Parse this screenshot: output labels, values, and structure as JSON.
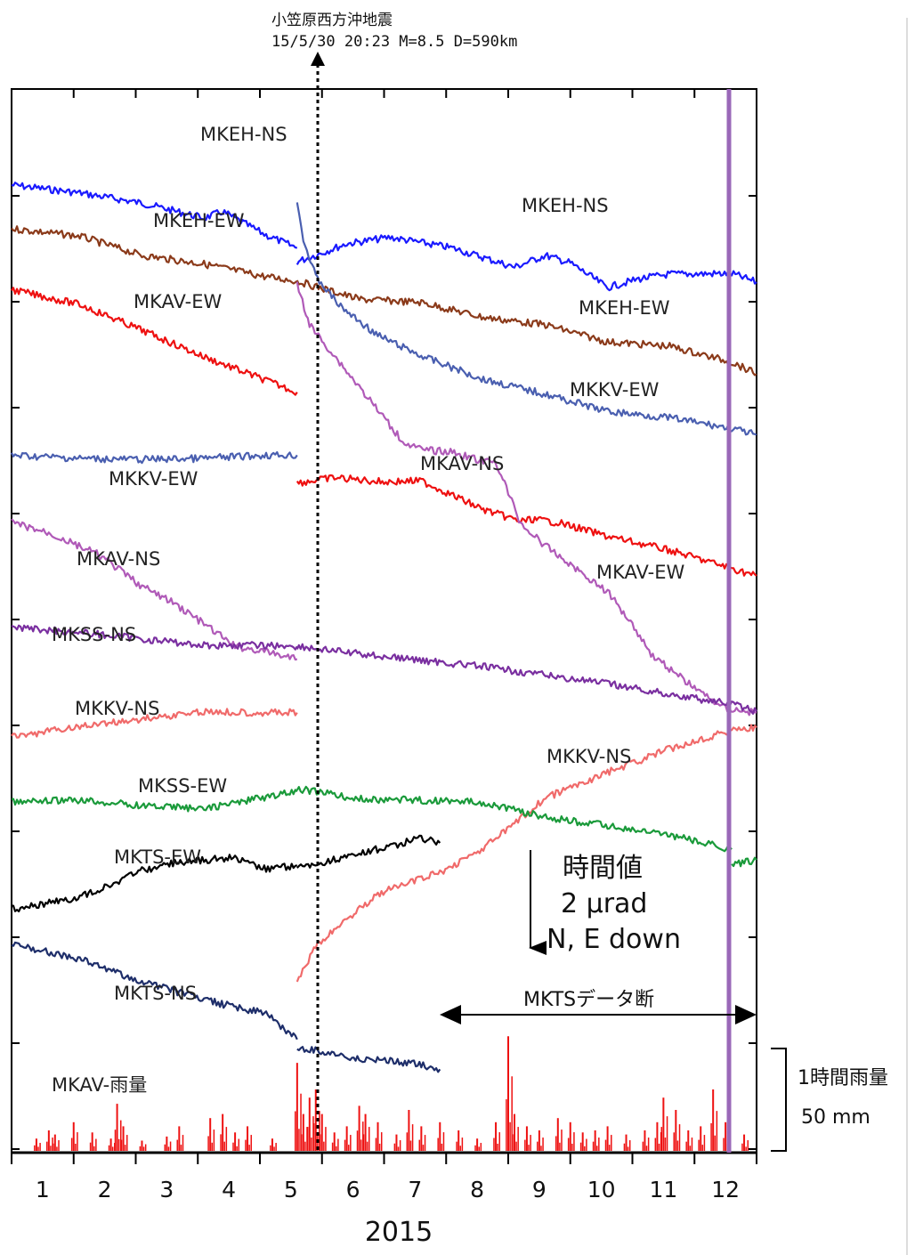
{
  "chart_data": {
    "type": "line",
    "title": "",
    "xlabel": "2015",
    "ylabel": "",
    "x_ticks": [
      "1",
      "2",
      "3",
      "4",
      "5",
      "6",
      "7",
      "8",
      "9",
      "10",
      "11",
      "12"
    ],
    "xlim": [
      0.4,
      12.4
    ],
    "grid": false,
    "event": {
      "name": "小笠原西方沖地震",
      "detail": "15/5/30 20:23 M=8.5 D=590km",
      "month": 5.0
    },
    "scale": {
      "title": "時間値",
      "value": "2 μrad",
      "direction": "N, E down"
    },
    "rain_scale": {
      "title": "1時間雨量",
      "value": "50 mm"
    },
    "gap_annotation": {
      "text": "MKTSデータ断",
      "from_month": 7.4,
      "to_month": 12.4
    },
    "series": [
      {
        "name": "MKEH-NS",
        "color": "#1a1aff",
        "segments": [
          {
            "x": [
              0.4,
              1.5,
              2.5,
              3.5,
              3.8,
              4.5,
              5.0
            ],
            "y": [
              1.72,
              1.57,
              1.38,
              1.1,
              1.22,
              0.78,
              0.54
            ]
          },
          {
            "x": [
              5.0,
              5.8,
              6.5,
              7.5,
              8.5,
              9.0,
              9.4,
              10.0,
              10.5,
              11.0,
              12.0,
              12.4
            ],
            "y": [
              0.28,
              0.62,
              0.74,
              0.54,
              0.18,
              0.4,
              0.26,
              -0.2,
              -0.04,
              0.05,
              0.06,
              -0.1
            ]
          }
        ]
      },
      {
        "name": "MKEH-EW",
        "color": "#8b3a1a",
        "segments": [
          {
            "x": [
              0.4,
              1.5,
              2.5,
              3.5,
              4.5,
              5.0
            ],
            "y": [
              0.9,
              0.76,
              0.4,
              0.24,
              0.0,
              -0.08
            ]
          },
          {
            "x": [
              5.0,
              6.0,
              7.0,
              8.0,
              9.0,
              10.0,
              11.0,
              12.0,
              12.4
            ],
            "y": [
              -0.08,
              -0.42,
              -0.48,
              -0.76,
              -0.9,
              -1.22,
              -1.3,
              -1.6,
              -1.82
            ]
          }
        ]
      },
      {
        "name": "MKAV-EW",
        "color": "#ee1111",
        "segments": [
          {
            "x": [
              0.4,
              1.5,
              2.5,
              3.5,
              4.5,
              5.0
            ],
            "y": [
              -0.24,
              -0.52,
              -1.0,
              -1.5,
              -1.94,
              -2.16
            ]
          },
          {
            "x": [
              5.0,
              5.6,
              6.4,
              7.0,
              8.0,
              8.6,
              8.8,
              9.2,
              10.0,
              11.0,
              12.0,
              12.4
            ],
            "y": [
              -3.86,
              -3.76,
              -3.84,
              -3.82,
              -4.36,
              -4.58,
              -4.54,
              -4.6,
              -4.86,
              -5.12,
              -5.46,
              -5.6
            ]
          }
        ]
      },
      {
        "name": "MKKV-EW",
        "color": "#4a5fb0",
        "segments": [
          {
            "x": [
              0.4,
              1.5,
              2.5,
              3.5,
              4.5,
              5.0
            ],
            "y": [
              -3.34,
              -3.4,
              -3.42,
              -3.4,
              -3.34,
              -3.34
            ]
          },
          {
            "x": [
              5.0,
              5.1,
              5.3,
              5.7,
              6.3,
              7.0,
              8.0,
              9.0,
              10.0,
              11.0,
              12.0,
              12.4
            ],
            "y": [
              1.4,
              0.7,
              0.0,
              -0.56,
              -1.1,
              -1.48,
              -1.92,
              -2.2,
              -2.52,
              -2.64,
              -2.84,
              -2.96
            ]
          }
        ]
      },
      {
        "name": "MKAV-NS",
        "color": "#b05ab8",
        "segments": [
          {
            "x": [
              0.4,
              1.0,
              1.8,
              2.5,
              3.0,
              3.5,
              4.0,
              4.5,
              5.0
            ],
            "y": [
              -4.6,
              -4.8,
              -5.2,
              -5.8,
              -6.1,
              -6.5,
              -6.92,
              -7.02,
              -7.16
            ]
          },
          {
            "x": [
              5.0,
              5.2,
              6.0,
              6.7,
              7.0,
              7.5,
              8.0,
              8.2,
              8.4,
              8.6,
              9.0,
              9.6,
              10.0,
              10.4,
              10.7,
              11.2,
              11.6,
              11.9,
              12.4
            ],
            "y": [
              -0.12,
              -0.9,
              -2.06,
              -3.08,
              -3.24,
              -3.28,
              -3.46,
              -3.46,
              -4.04,
              -4.62,
              -5.04,
              -5.56,
              -5.9,
              -6.5,
              -7.06,
              -7.52,
              -7.86,
              -8.08,
              -8.16
            ]
          }
        ]
      },
      {
        "name": "MKSS-NS",
        "color": "#7a2fa0",
        "segments": [
          {
            "x": [
              0.4,
              1.5,
              2.5,
              3.5,
              4.5,
              5.0
            ],
            "y": [
              -6.56,
              -6.66,
              -6.78,
              -6.9,
              -6.9,
              -6.92
            ]
          },
          {
            "x": [
              5.0,
              6.0,
              7.0,
              8.0,
              9.0,
              10.0,
              11.0,
              12.0,
              12.4
            ],
            "y": [
              -6.92,
              -7.06,
              -7.18,
              -7.3,
              -7.46,
              -7.62,
              -7.82,
              -8.0,
              -8.14
            ]
          }
        ]
      },
      {
        "name": "MKKV-NS",
        "color": "#f06a6a",
        "segments": [
          {
            "x": [
              0.4,
              1.5,
              2.5,
              3.5,
              4.5,
              5.0
            ],
            "y": [
              -8.62,
              -8.42,
              -8.28,
              -8.14,
              -8.16,
              -8.16
            ]
          },
          {
            "x": [
              5.0,
              5.3,
              5.8,
              6.3,
              6.8,
              7.3,
              8.0,
              8.5,
              9.0,
              10.0,
              11.0,
              12.0,
              12.4
            ],
            "y": [
              -13.22,
              -12.54,
              -12.02,
              -11.56,
              -11.34,
              -11.16,
              -10.7,
              -10.24,
              -9.76,
              -9.28,
              -8.84,
              -8.48,
              -8.44
            ]
          }
        ]
      },
      {
        "name": "MKSS-EW",
        "color": "#1a9a3a",
        "segments": [
          {
            "x": [
              0.4,
              1.5,
              2.5,
              3.5,
              4.5,
              5.0
            ],
            "y": [
              -9.84,
              -9.8,
              -9.9,
              -9.96,
              -9.74,
              -9.64
            ]
          },
          {
            "x": [
              5.0,
              6.0,
              7.0,
              8.0,
              9.0,
              10.0,
              11.0,
              12.0
            ],
            "y": [
              -9.58,
              -9.78,
              -9.8,
              -9.84,
              -10.12,
              -10.28,
              -10.46,
              -10.72
            ]
          },
          {
            "x": [
              12.0,
              12.4
            ],
            "y": [
              -11.02,
              -10.92
            ]
          }
        ]
      },
      {
        "name": "MKTS-EW",
        "color": "#000000",
        "segments": [
          {
            "x": [
              0.4,
              1.5,
              2.5,
              3.0,
              3.5,
              4.0,
              4.5,
              5.0
            ],
            "y": [
              -11.84,
              -11.62,
              -11.12,
              -10.98,
              -10.92,
              -10.88,
              -11.08,
              -11.02
            ]
          },
          {
            "x": [
              5.0,
              5.5,
              6.0,
              6.5,
              7.0,
              7.3
            ],
            "y": [
              -11.06,
              -10.94,
              -10.8,
              -10.66,
              -10.52,
              -10.6
            ]
          }
        ]
      },
      {
        "name": "MKTS-NS",
        "color": "#1e2e6a",
        "segments": [
          {
            "x": [
              0.4,
              1.5,
              2.5,
              3.5,
              4.5,
              5.0
            ],
            "y": [
              -12.48,
              -12.78,
              -13.2,
              -13.54,
              -13.8,
              -14.28
            ]
          },
          {
            "x": [
              5.0,
              5.5,
              6.0,
              6.5,
              7.0,
              7.3
            ],
            "y": [
              -14.44,
              -14.52,
              -14.66,
              -14.68,
              -14.76,
              -14.84
            ]
          }
        ]
      }
    ],
    "rain": {
      "name": "MKAV-雨量",
      "color": "#ee1111",
      "peaks": [
        {
          "x": 0.8,
          "v": 6
        },
        {
          "x": 1.0,
          "v": 10
        },
        {
          "x": 1.1,
          "v": 8
        },
        {
          "x": 1.4,
          "v": 14
        },
        {
          "x": 1.7,
          "v": 9
        },
        {
          "x": 2.0,
          "v": 6
        },
        {
          "x": 2.1,
          "v": 23
        },
        {
          "x": 2.2,
          "v": 12
        },
        {
          "x": 2.5,
          "v": 5
        },
        {
          "x": 2.9,
          "v": 7
        },
        {
          "x": 3.1,
          "v": 12
        },
        {
          "x": 3.6,
          "v": 16
        },
        {
          "x": 3.8,
          "v": 18
        },
        {
          "x": 4.0,
          "v": 9
        },
        {
          "x": 4.2,
          "v": 12
        },
        {
          "x": 4.6,
          "v": 6
        },
        {
          "x": 5.0,
          "v": 43
        },
        {
          "x": 5.1,
          "v": 18
        },
        {
          "x": 5.2,
          "v": 26
        },
        {
          "x": 5.3,
          "v": 30
        },
        {
          "x": 5.4,
          "v": 18
        },
        {
          "x": 5.6,
          "v": 9
        },
        {
          "x": 5.8,
          "v": 12
        },
        {
          "x": 6.0,
          "v": 22
        },
        {
          "x": 6.1,
          "v": 18
        },
        {
          "x": 6.3,
          "v": 14
        },
        {
          "x": 6.6,
          "v": 8
        },
        {
          "x": 6.8,
          "v": 20
        },
        {
          "x": 7.0,
          "v": 12
        },
        {
          "x": 7.3,
          "v": 14
        },
        {
          "x": 7.6,
          "v": 10
        },
        {
          "x": 7.9,
          "v": 6
        },
        {
          "x": 8.2,
          "v": 14
        },
        {
          "x": 8.4,
          "v": 56
        },
        {
          "x": 8.5,
          "v": 18
        },
        {
          "x": 8.7,
          "v": 12
        },
        {
          "x": 8.9,
          "v": 10
        },
        {
          "x": 9.2,
          "v": 16
        },
        {
          "x": 9.4,
          "v": 14
        },
        {
          "x": 9.6,
          "v": 9
        },
        {
          "x": 9.8,
          "v": 10
        },
        {
          "x": 10.0,
          "v": 12
        },
        {
          "x": 10.3,
          "v": 8
        },
        {
          "x": 10.6,
          "v": 10
        },
        {
          "x": 10.8,
          "v": 14
        },
        {
          "x": 10.9,
          "v": 26
        },
        {
          "x": 11.1,
          "v": 20
        },
        {
          "x": 11.3,
          "v": 10
        },
        {
          "x": 11.5,
          "v": 12
        },
        {
          "x": 11.7,
          "v": 30
        },
        {
          "x": 11.9,
          "v": 14
        },
        {
          "x": 12.2,
          "v": 8
        }
      ]
    }
  }
}
